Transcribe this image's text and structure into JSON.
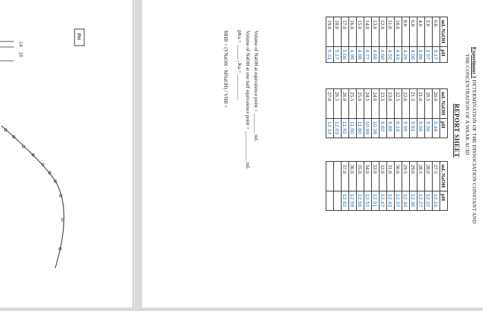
{
  "left_page": {
    "axis_label": "PH",
    "tick_labels": [
      "16",
      "14"
    ]
  },
  "report": {
    "experiment_label": "Experiment 3",
    "title_line1": "DETERMINATION OF THE DISSOCIATION CONSTANT AND",
    "title_line2": "THE CONCENTRATION OF A WEAK ACID",
    "subtitle": "REPORT SHEET",
    "col_headers": {
      "volume": "mL NaOH",
      "ph": "pH"
    },
    "table1": [
      {
        "v": "0.0",
        "p": "3.17"
      },
      {
        "v": "2.0",
        "p": "3.57"
      },
      {
        "v": "4.0",
        "p": "3.86"
      },
      {
        "v": "6.0",
        "p": "4.08"
      },
      {
        "v": "8.0",
        "p": "4.26"
      },
      {
        "v": "10.0",
        "p": "4.43"
      },
      {
        "v": "11.0",
        "p": "4.52"
      },
      {
        "v": "12.0",
        "p": "4.60"
      },
      {
        "v": "13.0",
        "p": "4.68"
      },
      {
        "v": "14.0",
        "p": "4.77"
      },
      {
        "v": "15.0",
        "p": "4.86"
      },
      {
        "v": "16.0",
        "p": "4.96"
      },
      {
        "v": "17.0",
        "p": "5.06"
      },
      {
        "v": "18.0",
        "p": "5.17"
      },
      {
        "v": "19.0",
        "p": "5.31"
      }
    ],
    "table2": [
      {
        "v": "20.0",
        "p": "5.46"
      },
      {
        "v": "20.5",
        "p": "5.56"
      },
      {
        "v": "21.0",
        "p": "5.66"
      },
      {
        "v": "21.5",
        "p": "5.81"
      },
      {
        "v": "22.0",
        "p": "5.95"
      },
      {
        "v": "22.5",
        "p": "6.19"
      },
      {
        "v": "23.0",
        "p": "6.88"
      },
      {
        "v": "23.5",
        "p": "8.82"
      },
      {
        "v": "24.0",
        "p": "10.36"
      },
      {
        "v": "24.5",
        "p": "10.96"
      },
      {
        "v": "25.0",
        "p": "11.60"
      },
      {
        "v": "25.5",
        "p": "11.80"
      },
      {
        "v": "26.0",
        "p": "11.92"
      },
      {
        "v": "26.5",
        "p": "12.03"
      },
      {
        "v": "27.0",
        "p": "12.12"
      }
    ],
    "table3": [
      {
        "v": "27.5",
        "p": "12.16"
      },
      {
        "v": "28.0",
        "p": "12.22"
      },
      {
        "v": "28.5",
        "p": "12.27"
      },
      {
        "v": "29.0",
        "p": "12.30"
      },
      {
        "v": "29.5",
        "p": "12.34"
      },
      {
        "v": "30.0",
        "p": "12.37"
      },
      {
        "v": "31.0",
        "p": "12.43"
      },
      {
        "v": "32.0",
        "p": "12.47"
      },
      {
        "v": "33.0",
        "p": "12.51"
      },
      {
        "v": "34.0",
        "p": "12.52"
      },
      {
        "v": "35.0",
        "p": "12.56"
      },
      {
        "v": "36.0",
        "p": "12.59"
      },
      {
        "v": "37.0",
        "p": "12.62"
      },
      {
        "v": "",
        "p": ""
      },
      {
        "v": "",
        "p": ""
      }
    ],
    "questions": {
      "q1_text": "Volume of NaOH at equivalence point =",
      "q1_unit": "mL",
      "q2_text": "Volume of NaOH at one half equivalence point =",
      "q2_unit": "mL",
      "q3_pka": "pKa =",
      "q3_ka": ", Ka =",
      "q4_formula": "MHB = (VNaOH · MNaOH) / VHB ="
    }
  }
}
